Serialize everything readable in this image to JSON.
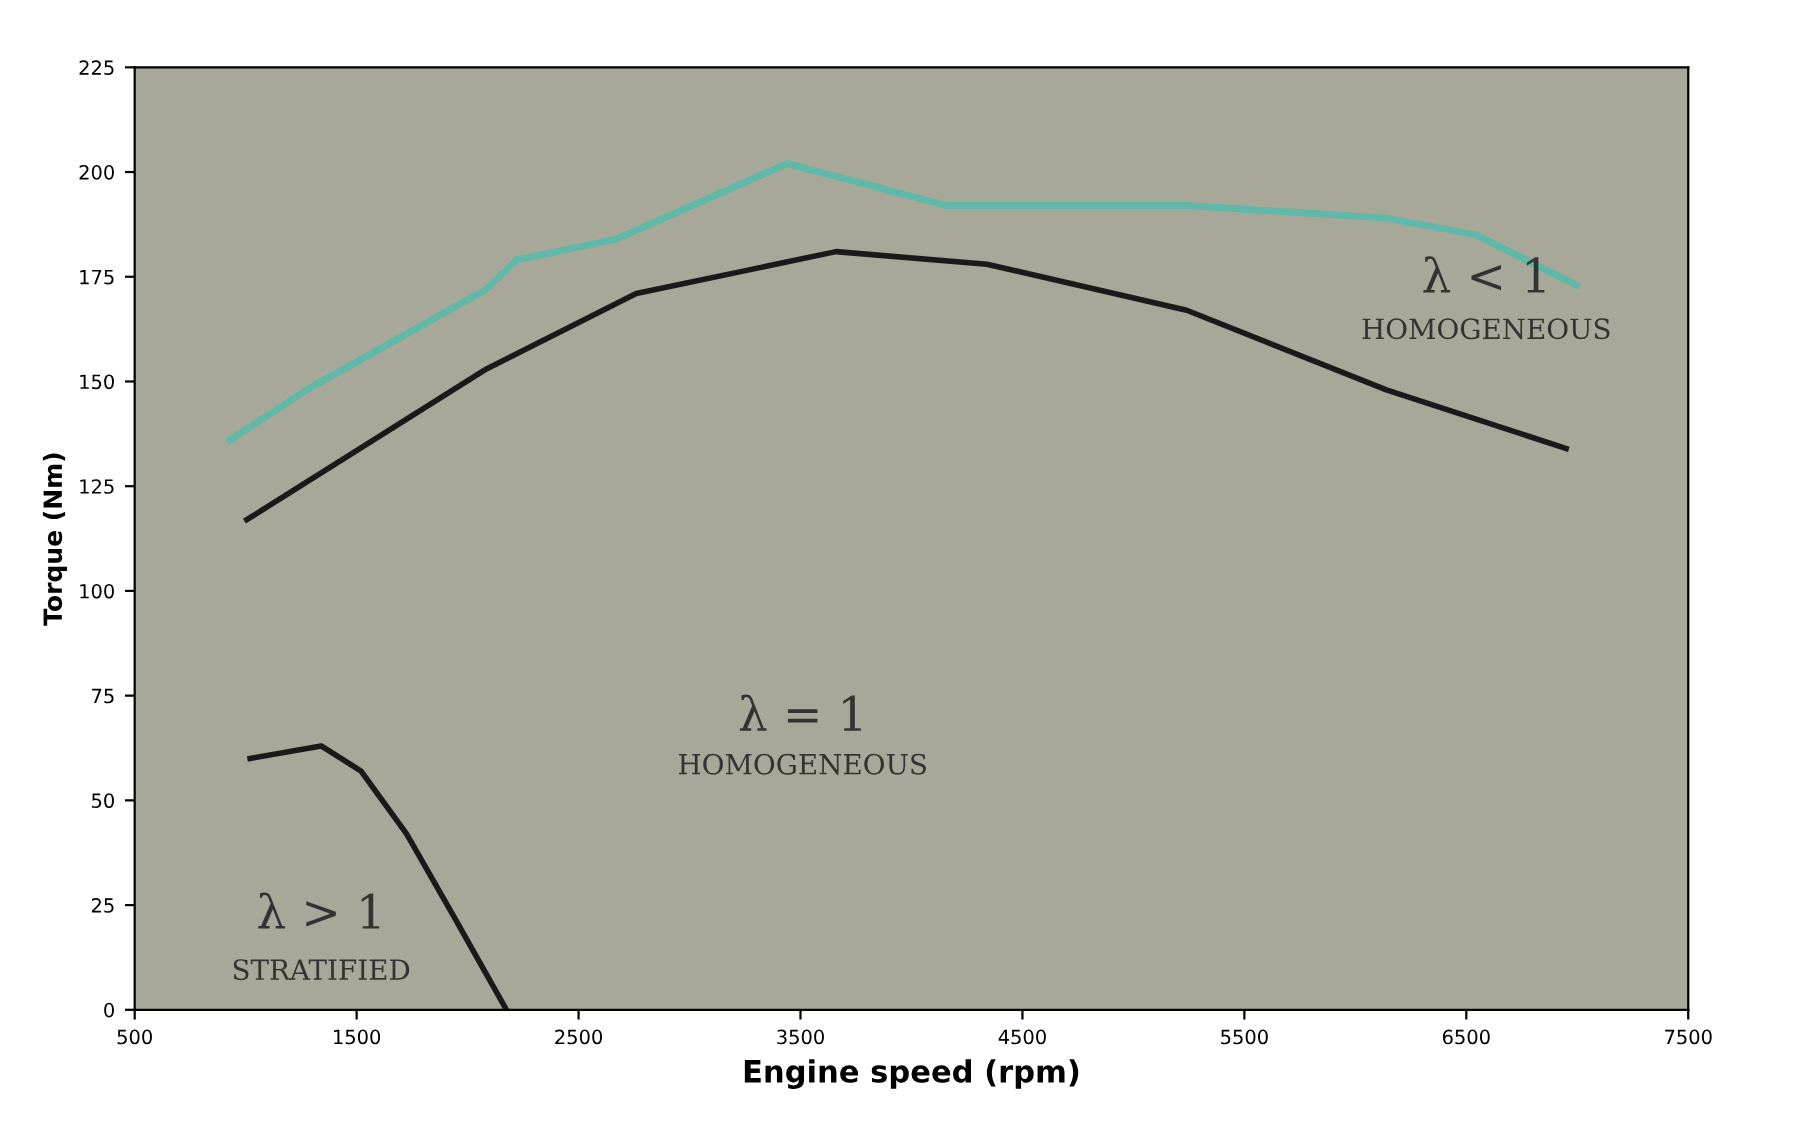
{
  "chart_data": {
    "type": "line",
    "xlabel": "Engine speed (rpm)",
    "ylabel": "Torque (Nm)",
    "xlim": [
      500,
      7500
    ],
    "xticks": [
      500,
      1500,
      2500,
      3500,
      4500,
      5500,
      6500,
      7500
    ],
    "ylim": [
      0,
      225
    ],
    "yticks": [
      0,
      25,
      50,
      75,
      100,
      125,
      150,
      175,
      200,
      225
    ],
    "marker": "none",
    "line_style": "solid",
    "series": [
      {
        "color": "#5fb8a8",
        "x": [
          930,
          1275,
          2085,
          2220,
          2670,
          3440,
          4160,
          5240,
          6140,
          6545,
          6995
        ],
        "values": [
          136,
          148,
          172,
          179,
          184,
          202,
          192,
          192,
          189,
          185,
          173
        ]
      },
      {
        "color": "#1a1a1a",
        "x": [
          1005,
          2085,
          2760,
          3660,
          4340,
          5240,
          6140,
          6950
        ],
        "values": [
          117,
          153,
          171,
          181,
          178,
          167,
          148,
          134
        ]
      },
      {
        "color": "#1a1a1a",
        "x": [
          1020,
          1340,
          1520,
          1725,
          1930,
          2175
        ],
        "values": [
          60,
          63,
          57,
          42,
          23,
          0
        ]
      }
    ],
    "annotations": [
      "λ < 1",
      "HOMOGENEOUS",
      "λ = 1",
      "HOMOGENEOUS",
      "λ > 1",
      "STRATIFIED"
    ]
  }
}
